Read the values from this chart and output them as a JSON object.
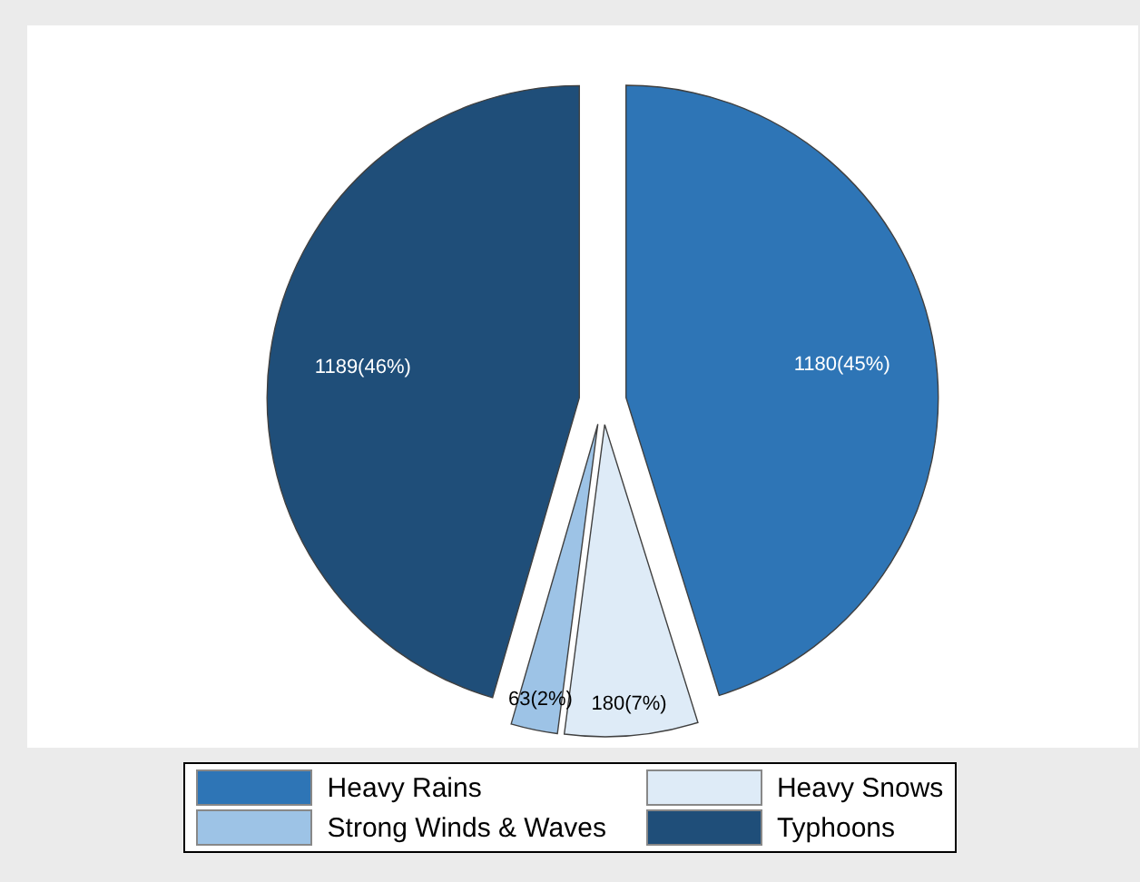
{
  "chart_data": {
    "type": "pie",
    "categories": [
      "Heavy Rains",
      "Heavy Snows",
      "Strong Winds & Waves",
      "Typhoons"
    ],
    "values": [
      1180,
      180,
      63,
      1189
    ],
    "colors": [
      "#2e75b6",
      "#deebf7",
      "#9dc3e6",
      "#1f4e79"
    ],
    "value_labels": [
      "1180(45%)",
      "180(7%)",
      "63(2%)",
      "1189(46%)"
    ],
    "legend": "bottom"
  }
}
